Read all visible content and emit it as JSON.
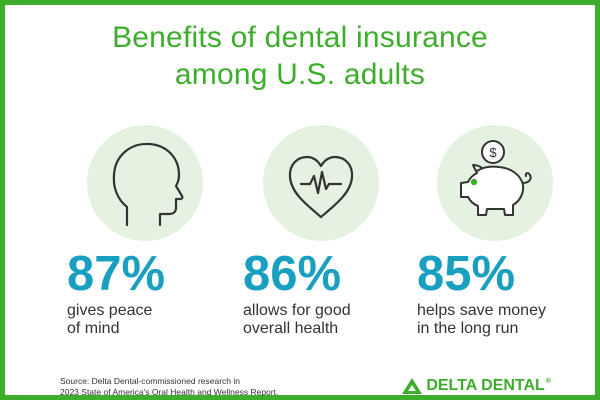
{
  "title": {
    "line1": "Benefits of dental insurance",
    "line2": "among U.S. adults"
  },
  "stats": [
    {
      "icon": "head-profile-icon",
      "value": "87%",
      "line1": "gives peace",
      "line2": "of mind"
    },
    {
      "icon": "heart-pulse-icon",
      "value": "86%",
      "line1": "allows for good",
      "line2": "overall health"
    },
    {
      "icon": "piggy-bank-icon",
      "value": "85%",
      "line1": "helps save money",
      "line2": "in the long run"
    }
  ],
  "source": {
    "line1": "Source: Delta Dental-commissioned research in",
    "line2": "2023 State of America's Oral Health and Wellness Report."
  },
  "brand": {
    "name": "DELTA DENTAL",
    "mark": "®"
  },
  "colors": {
    "brand_green": "#3dae2b",
    "accent_blue": "#19a0c0",
    "icon_circle": "#e5f2e1",
    "text": "#333333"
  }
}
